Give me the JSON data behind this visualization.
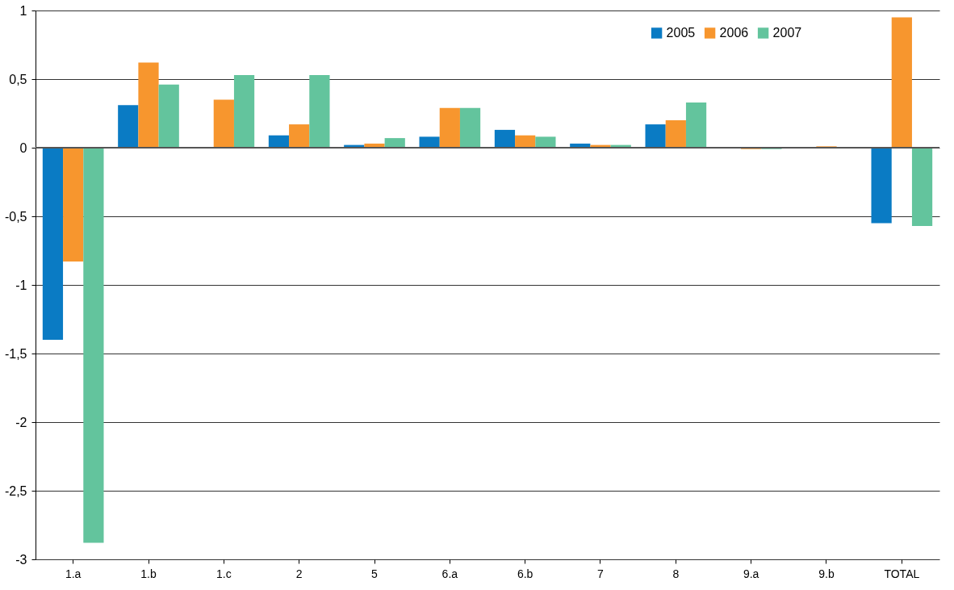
{
  "chart_data": {
    "type": "bar",
    "categories": [
      "1.a",
      "1.b",
      "1.c",
      "2",
      "5",
      "6.a",
      "6.b",
      "7",
      "8",
      "9.a",
      "9.b",
      "TOTAL"
    ],
    "series": [
      {
        "name": "2005",
        "color": "#0a7bc4",
        "values": [
          -1.4,
          0.31,
          null,
          0.09,
          0.02,
          0.08,
          0.13,
          0.03,
          0.17,
          null,
          null,
          -0.55
        ]
      },
      {
        "name": "2006",
        "color": "#f7962e",
        "values": [
          -0.83,
          0.62,
          0.35,
          0.17,
          0.03,
          0.29,
          0.09,
          0.02,
          0.2,
          -0.01,
          0.01,
          0.95
        ]
      },
      {
        "name": "2007",
        "color": "#63c49d",
        "values": [
          -2.88,
          0.46,
          0.53,
          0.53,
          0.07,
          0.29,
          0.08,
          0.02,
          0.33,
          -0.01,
          null,
          -0.57
        ]
      }
    ],
    "ylim": [
      -3,
      1
    ],
    "yticks": [
      {
        "value": -3,
        "label": "-3"
      },
      {
        "value": -2.5,
        "label": "-2,5"
      },
      {
        "value": -2,
        "label": "-2"
      },
      {
        "value": -1.5,
        "label": "-1,5"
      },
      {
        "value": -1,
        "label": "-1"
      },
      {
        "value": -0.5,
        "label": "-0,5"
      },
      {
        "value": 0,
        "label": "0"
      },
      {
        "value": 0.5,
        "label": "0,5"
      },
      {
        "value": 1,
        "label": "1"
      }
    ],
    "grid": "y",
    "legend": "top right"
  }
}
